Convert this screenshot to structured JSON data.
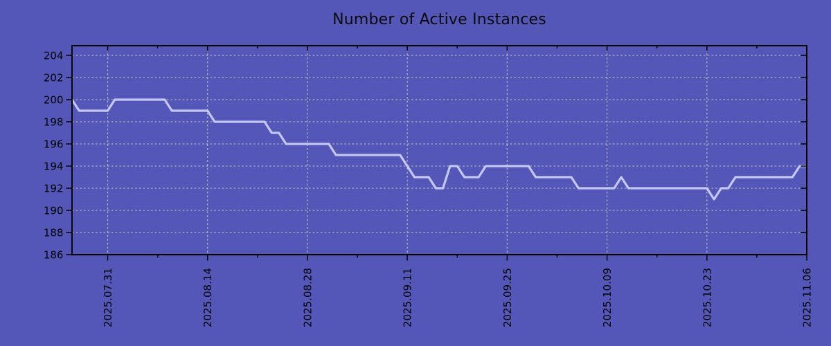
{
  "colors": {
    "background": "#5457b7",
    "line": "#c5c8f2",
    "grid": "#d3d3ba",
    "axis": "#000000",
    "title_text": "#0a0a0a",
    "tick_text": "#000000"
  },
  "chart_data": {
    "type": "line",
    "title": "Number of Active Instances",
    "xlabel": "",
    "ylabel": "",
    "grid": true,
    "legend": "none",
    "start_date": "2025.07.26",
    "end_date": "2025.11.06",
    "x_major_ticks": [
      {
        "day": 5,
        "label": "2025.07.31"
      },
      {
        "day": 19,
        "label": "2025.08.14"
      },
      {
        "day": 33,
        "label": "2025.08.28"
      },
      {
        "day": 47,
        "label": "2025.09.11"
      },
      {
        "day": 61,
        "label": "2025.09.25"
      },
      {
        "day": 75,
        "label": "2025.10.09"
      },
      {
        "day": 89,
        "label": "2025.10.23"
      },
      {
        "day": 103,
        "label": "2025.11.06"
      }
    ],
    "x_minor_tick_days": [
      12,
      26,
      40,
      54,
      68,
      82,
      96
    ],
    "y_ticks": [
      186,
      188,
      190,
      192,
      194,
      196,
      198,
      200,
      202,
      204
    ],
    "ylim": [
      186,
      204.875
    ],
    "series": [
      {
        "name": "active-instances",
        "values": [
          200,
          199,
          199,
          199,
          199,
          199,
          200,
          200,
          200,
          200,
          200,
          200,
          200,
          200,
          199,
          199,
          199,
          199,
          199,
          199,
          198,
          198,
          198,
          198,
          198,
          198,
          198,
          198,
          197,
          197,
          196,
          196,
          196,
          196,
          196,
          196,
          196,
          195,
          195,
          195,
          195,
          195,
          195,
          195,
          195,
          195,
          195,
          194,
          193,
          193,
          193,
          192,
          192,
          194,
          194,
          193,
          193,
          193,
          194,
          194,
          194,
          194,
          194,
          194,
          194,
          193,
          193,
          193,
          193,
          193,
          193,
          192,
          192,
          192,
          192,
          192,
          192,
          193,
          192,
          192,
          192,
          192,
          192,
          192,
          192,
          192,
          192,
          192,
          192,
          192,
          191,
          192,
          192,
          193,
          193,
          193,
          193,
          193,
          193,
          193,
          193,
          193,
          194,
          194
        ]
      }
    ]
  }
}
